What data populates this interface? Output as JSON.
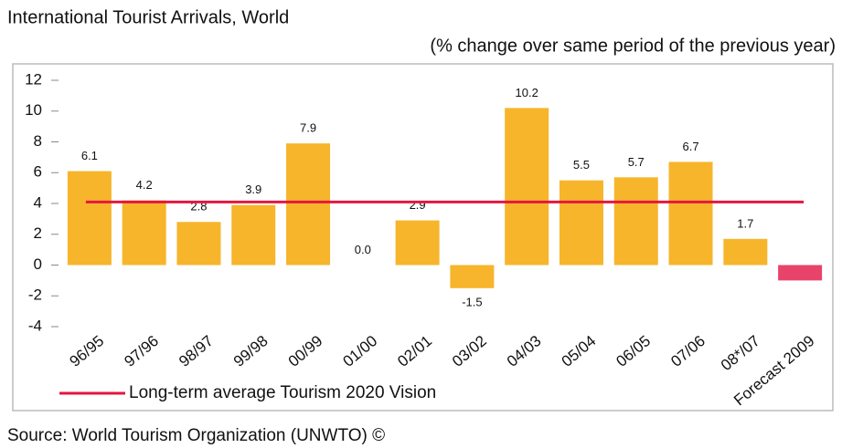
{
  "chart_data": {
    "type": "bar",
    "title": "International Tourist Arrivals, World",
    "subtitle": "(% change over same period of the previous year)",
    "source": "Source: World Tourism Organization (UNWTO) ©",
    "categories": [
      "96/95",
      "97/96",
      "98/97",
      "99/98",
      "00/99",
      "01/00",
      "02/01",
      "03/02",
      "04/03",
      "05/04",
      "06/05",
      "07/06",
      "08*/07",
      "Forecast 2009"
    ],
    "values": [
      6.1,
      4.2,
      2.8,
      3.9,
      7.9,
      0.0,
      2.9,
      -1.5,
      10.2,
      5.5,
      5.7,
      6.7,
      1.7,
      -1.0
    ],
    "value_labels": [
      "6.1",
      "4.2",
      "2.8",
      "3.9",
      "7.9",
      "0.0",
      "2.9",
      "-1.5",
      "10.2",
      "5.5",
      "5.7",
      "6.7",
      "1.7",
      null
    ],
    "colors": [
      "#f7b52c",
      "#f7b52c",
      "#f7b52c",
      "#f7b52c",
      "#f7b52c",
      "#f7b52c",
      "#f7b52c",
      "#f7b52c",
      "#f7b52c",
      "#f7b52c",
      "#f7b52c",
      "#f7b52c",
      "#f7b52c",
      "#e8436a"
    ],
    "average_line": {
      "value": 4.1,
      "color": "#e3173f",
      "label": "Long-term average Tourism 2020 Vision"
    },
    "ylim": [
      -4,
      12
    ],
    "yticks": [
      -4,
      -2,
      0,
      2,
      4,
      6,
      8,
      10,
      12
    ],
    "grid": false
  }
}
